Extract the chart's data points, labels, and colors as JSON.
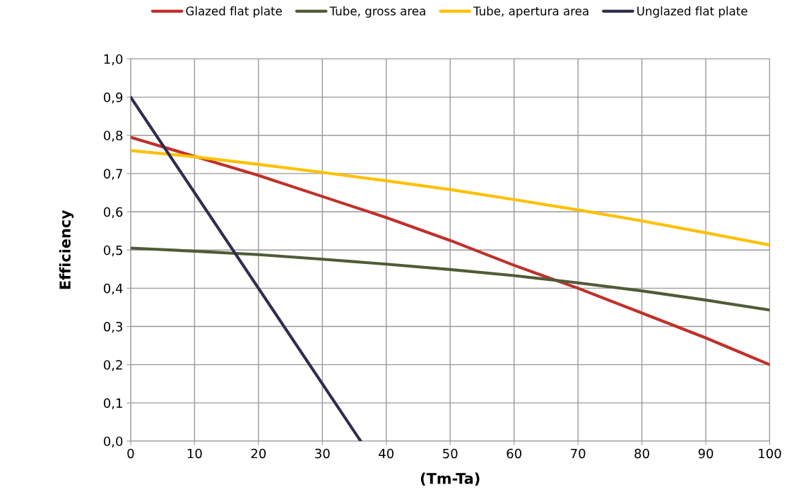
{
  "chart_data": {
    "type": "line",
    "xlabel": "(Tm-Ta)",
    "ylabel": "Efficiency",
    "xlim": [
      0,
      100
    ],
    "xticks": [
      0,
      10,
      20,
      30,
      40,
      50,
      60,
      70,
      80,
      90,
      100
    ],
    "ylim": [
      0,
      1
    ],
    "yticks": [
      {
        "value": 0,
        "label": "0,0"
      },
      {
        "value": 0.1,
        "label": "0,1"
      },
      {
        "value": 0.2,
        "label": "0,2"
      },
      {
        "value": 0.3,
        "label": "0,3"
      },
      {
        "value": 0.4,
        "label": "0,4"
      },
      {
        "value": 0.5,
        "label": "0,5"
      },
      {
        "value": 0.6,
        "label": "0,6"
      },
      {
        "value": 0.7,
        "label": "0,7"
      },
      {
        "value": 0.8,
        "label": "0,8"
      },
      {
        "value": 0.9,
        "label": "0,9"
      },
      {
        "value": 1,
        "label": "1,0"
      }
    ],
    "grid": true,
    "legend": "top",
    "marker": "none",
    "line_style": "solid",
    "series": [
      {
        "name": "Glazed flat plate",
        "color": "#c0302a",
        "x": [
          0,
          10,
          20,
          30,
          40,
          50,
          60,
          70,
          80,
          90,
          100
        ],
        "values": [
          0.795,
          0.745,
          0.695,
          0.64,
          0.585,
          0.525,
          0.46,
          0.4,
          0.335,
          0.27,
          0.2
        ]
      },
      {
        "name": "Tube, gross area",
        "color": "#4f5b35",
        "x": [
          0,
          10,
          20,
          30,
          40,
          50,
          60,
          70,
          80,
          90,
          100
        ],
        "values": [
          0.505,
          0.497,
          0.488,
          0.476,
          0.463,
          0.449,
          0.433,
          0.414,
          0.393,
          0.369,
          0.343
        ]
      },
      {
        "name": "Tube, apertura area",
        "color": "#ffc000",
        "x": [
          0,
          10,
          20,
          30,
          40,
          50,
          60,
          70,
          80,
          90,
          100
        ],
        "values": [
          0.76,
          0.744,
          0.724,
          0.703,
          0.681,
          0.658,
          0.632,
          0.605,
          0.576,
          0.545,
          0.513
        ]
      },
      {
        "name": "Unglazed flat plate",
        "color": "#2e2e4e",
        "x": [
          0,
          36
        ],
        "values": [
          0.9,
          0
        ]
      }
    ]
  }
}
